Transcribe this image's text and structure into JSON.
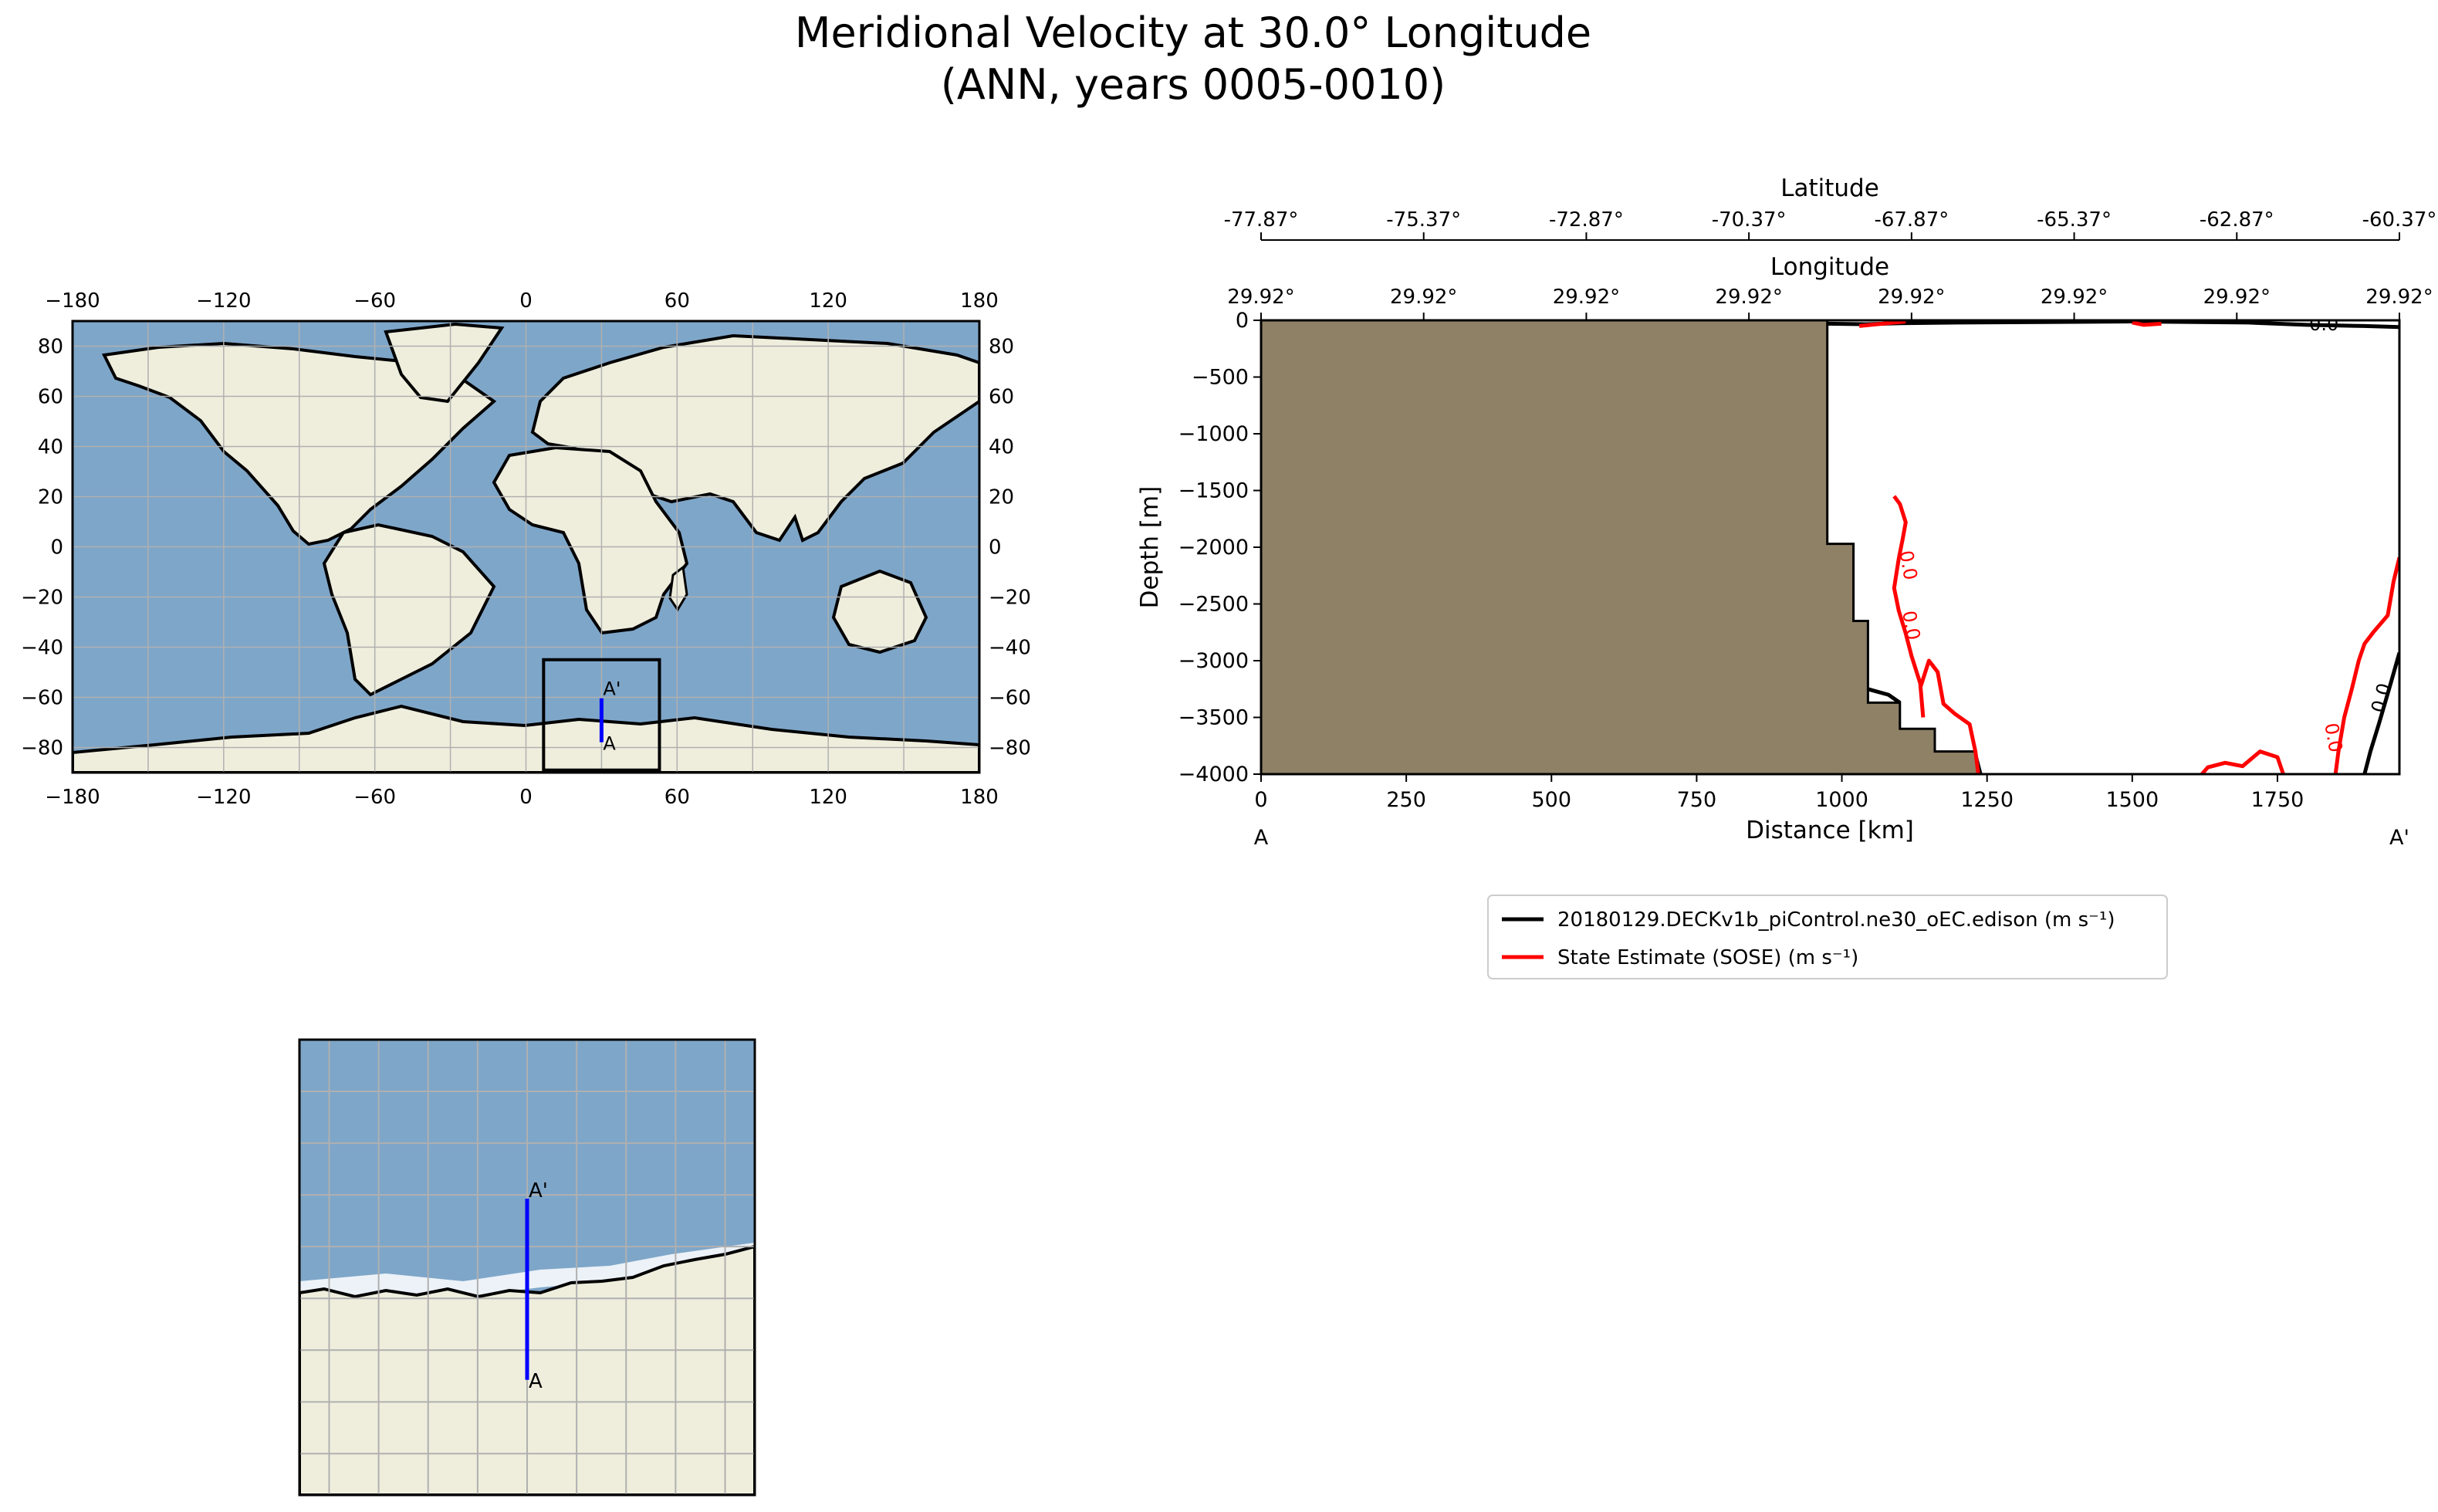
{
  "title": {
    "line1": "Meridional Velocity at 30.0° Longitude",
    "line2": "(ANN, years 0005-0010)"
  },
  "colors": {
    "ocean": "#7ea6c9",
    "land": "#efeedd",
    "seafloor": "#8e8166",
    "model_line": "#000000",
    "obs_line": "#ff0000",
    "transect": "#0000ff"
  },
  "chart_data": [
    {
      "type": "map",
      "projection": "plate-carree",
      "xlim": [
        -180,
        180
      ],
      "ylim": [
        -90,
        90
      ],
      "x_ticks": [
        -180,
        -120,
        -60,
        0,
        60,
        120,
        180
      ],
      "y_ticks": [
        80,
        60,
        40,
        20,
        0,
        -20,
        -40,
        -60,
        -80
      ],
      "grid": true,
      "inset_box": {
        "lon": [
          7,
          53
        ],
        "lat": [
          -89,
          -45
        ]
      },
      "transect": {
        "lon": 30,
        "lat_start": -77.87,
        "lat_end": -60.37,
        "start_label": "A",
        "end_label": "A'"
      }
    },
    {
      "type": "map",
      "projection": "plate-carree",
      "xlim": [
        7,
        53
      ],
      "ylim": [
        -89,
        -45
      ],
      "grid": true,
      "transect": {
        "lon": 30,
        "lat_start": -77.87,
        "lat_end": -60.37,
        "start_label": "A",
        "end_label": "A'"
      }
    },
    {
      "type": "line",
      "xlabel": "Distance [km]",
      "ylabel": "Depth [m]",
      "xlim": [
        0,
        1960
      ],
      "ylim": [
        -4000,
        0
      ],
      "x_ticks": [
        0,
        250,
        500,
        750,
        1000,
        1250,
        1500,
        1750
      ],
      "y_ticks": [
        0,
        -500,
        -1000,
        -1500,
        -2000,
        -2500,
        -3000,
        -3500,
        -4000
      ],
      "start_label": "A",
      "end_label": "A'",
      "top_axes": [
        {
          "label": "Latitude",
          "ticks": [
            "-77.87°",
            "-75.37°",
            "-72.87°",
            "-70.37°",
            "-67.87°",
            "-65.37°",
            "-62.87°",
            "-60.37°"
          ]
        },
        {
          "label": "Longitude",
          "ticks": [
            "29.92°",
            "29.92°",
            "29.92°",
            "29.92°",
            "29.92°",
            "29.92°",
            "29.92°",
            "29.92°"
          ]
        }
      ],
      "seafloor": [
        [
          0,
          0
        ],
        [
          975,
          0
        ],
        [
          975,
          -1970
        ],
        [
          1020,
          -1970
        ],
        [
          1020,
          -2650
        ],
        [
          1045,
          -2650
        ],
        [
          1045,
          -3370
        ],
        [
          1100,
          -3370
        ],
        [
          1100,
          -3600
        ],
        [
          1160,
          -3600
        ],
        [
          1160,
          -3800
        ],
        [
          1230,
          -3800
        ],
        [
          1240,
          -4000
        ],
        [
          0,
          -4000
        ]
      ],
      "series": [
        {
          "name": "20180129.DECKv1b_piControl.ne30_oEC.edison (m s⁻¹)",
          "color": "#000000",
          "contours": [
            [
              [
                975,
                -30
              ],
              [
                1040,
                -35
              ],
              [
                1100,
                -25
              ],
              [
                1200,
                -20
              ],
              [
                1500,
                -10
              ],
              [
                1700,
                -20
              ],
              [
                1800,
                -40
              ],
              [
                1900,
                -50
              ],
              [
                1960,
                -60
              ]
            ],
            [
              [
                1960,
                -2930
              ],
              [
                1945,
                -3200
              ],
              [
                1925,
                -3550
              ],
              [
                1910,
                -3800
              ],
              [
                1900,
                -4000
              ]
            ],
            [
              [
                1045,
                -3250
              ],
              [
                1080,
                -3300
              ],
              [
                1100,
                -3370
              ]
            ]
          ],
          "contour_labels": [
            {
              "text": "0.0",
              "x": 1830,
              "y": -40
            },
            {
              "text": "0.0",
              "x": 1930,
              "y": -3330
            }
          ]
        },
        {
          "name": "State Estimate (SOSE) (m s⁻¹)",
          "color": "#ff0000",
          "contours": [
            [
              [
                1030,
                -50
              ],
              [
                1070,
                -30
              ],
              [
                1110,
                -10
              ]
            ],
            [
              [
                1500,
                -20
              ],
              [
                1520,
                -40
              ],
              [
                1550,
                -30
              ]
            ],
            [
              [
                1090,
                -1550
              ],
              [
                1100,
                -1620
              ],
              [
                1110,
                -1780
              ],
              [
                1105,
                -1920
              ],
              [
                1098,
                -2100
              ],
              [
                1090,
                -2360
              ],
              [
                1098,
                -2560
              ],
              [
                1110,
                -2760
              ],
              [
                1120,
                -2960
              ],
              [
                1135,
                -3200
              ],
              [
                1140,
                -3500
              ]
            ],
            [
              [
                1135,
                -3240
              ],
              [
                1150,
                -3000
              ],
              [
                1165,
                -3100
              ],
              [
                1175,
                -3380
              ],
              [
                1195,
                -3470
              ],
              [
                1220,
                -3560
              ],
              [
                1230,
                -3800
              ],
              [
                1235,
                -4000
              ]
            ],
            [
              [
                1620,
                -4000
              ],
              [
                1630,
                -3940
              ],
              [
                1660,
                -3900
              ],
              [
                1690,
                -3930
              ],
              [
                1720,
                -3800
              ],
              [
                1750,
                -3850
              ],
              [
                1760,
                -4000
              ]
            ],
            [
              [
                1960,
                -2090
              ],
              [
                1950,
                -2300
              ],
              [
                1940,
                -2600
              ],
              [
                1915,
                -2750
              ],
              [
                1900,
                -2850
              ],
              [
                1890,
                -3000
              ],
              [
                1878,
                -3250
              ],
              [
                1865,
                -3500
              ],
              [
                1855,
                -3800
              ],
              [
                1850,
                -4000
              ]
            ]
          ],
          "contour_labels": [
            {
              "text": "0.0",
              "x": 1113,
              "y": -2160
            },
            {
              "text": "0.0",
              "x": 1118,
              "y": -2690
            },
            {
              "text": "0.0",
              "x": 1845,
              "y": -3680
            }
          ]
        }
      ],
      "legend_position": "below"
    }
  ]
}
